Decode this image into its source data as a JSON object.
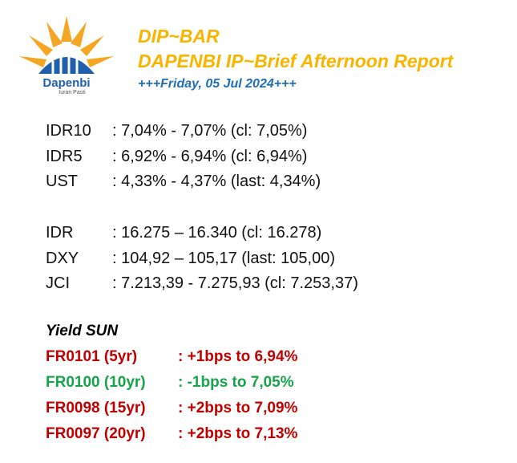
{
  "header": {
    "title": "DIP~BAR",
    "subtitle": "DAPENBI IP~Brief Afternoon Report",
    "date": "+++Friday, 05 Jul 2024+++"
  },
  "logo": {
    "name": "Dapenbi",
    "tagline": "Iuran Pasti"
  },
  "markets": [
    {
      "label": "IDR10",
      "value": ": 7,04% - 7,07% (cl: 7,05%)"
    },
    {
      "label": "IDR5",
      "value": ": 6,92% - 6,94% (cl: 6,94%)"
    },
    {
      "label": "UST",
      "value": ": 4,33% - 4,37% (last: 4,34%)"
    },
    {
      "label": "IDR",
      "value": ": 16.275 – 16.340 (cl: 16.278)"
    },
    {
      "label": "DXY",
      "value": ": 104,92 – 105,17 (last: 105,00)"
    },
    {
      "label": "JCI",
      "value": ": 7.213,39 - 7.275,93 (cl: 7.253,37)"
    }
  ],
  "yield": {
    "title": "Yield SUN",
    "rows": [
      {
        "bond": "FR0101 (5yr)",
        "change": ": +1bps to 6,94%"
      },
      {
        "bond": "FR0100 (10yr)",
        "change": ": -1bps to 7,05%"
      },
      {
        "bond": "FR0098 (15yr)",
        "change": ": +2bps to 7,09%"
      },
      {
        "bond": "FR0097 (20yr)",
        "change": ": +2bps to 7,13%"
      }
    ]
  }
}
